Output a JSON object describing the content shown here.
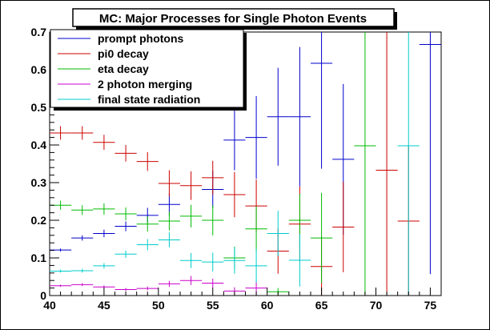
{
  "chart_data": {
    "type": "scatter",
    "title": "MC: Major Processes for Single Photon Events",
    "xlabel": "",
    "ylabel": "",
    "xlim": [
      40,
      76
    ],
    "ylim": [
      0,
      0.7
    ],
    "x_ticks": [
      40,
      45,
      50,
      55,
      60,
      65,
      70,
      75
    ],
    "x_tick_labels": [
      "40",
      "45",
      "50",
      "55",
      "60",
      "65",
      "70",
      "75"
    ],
    "y_ticks": [
      0,
      0.1,
      0.2,
      0.3,
      0.4,
      0.5,
      0.6,
      0.7
    ],
    "y_tick_labels": [
      "0",
      "0.1",
      "0.2",
      "0.3",
      "0.4",
      "0.5",
      "0.6",
      "0.7"
    ],
    "grid": false,
    "legend": "top-left",
    "x_bin_half_width": 1,
    "series": [
      {
        "name": "prompt photons",
        "color": "#0000cc",
        "points": [
          {
            "x": 41,
            "y": 0.121,
            "err": 0.004
          },
          {
            "x": 43,
            "y": 0.153,
            "err": 0.007
          },
          {
            "x": 45,
            "y": 0.165,
            "err": 0.01
          },
          {
            "x": 47,
            "y": 0.184,
            "err": 0.013
          },
          {
            "x": 49,
            "y": 0.213,
            "err": 0.02
          },
          {
            "x": 51,
            "y": 0.242,
            "err": 0.03
          },
          {
            "x": 55,
            "y": 0.282,
            "err": 0.05
          },
          {
            "x": 57,
            "y": 0.413,
            "err": 0.08
          },
          {
            "x": 59,
            "y": 0.42,
            "err": 0.11
          },
          {
            "x": 61,
            "y": 0.475,
            "err": 0.13
          },
          {
            "x": 63,
            "y": 0.475,
            "err": 0.185
          },
          {
            "x": 65,
            "y": 0.617,
            "err": 0.28
          },
          {
            "x": 67,
            "y": 0.362,
            "err": 0.2
          },
          {
            "x": 75,
            "y": 0.667,
            "err": 0.61
          }
        ]
      },
      {
        "name": "pi0 decay",
        "color": "#cc0000",
        "points": [
          {
            "x": 41,
            "y": 0.432,
            "err": 0.018
          },
          {
            "x": 43,
            "y": 0.432,
            "err": 0.018
          },
          {
            "x": 45,
            "y": 0.407,
            "err": 0.02
          },
          {
            "x": 47,
            "y": 0.378,
            "err": 0.022
          },
          {
            "x": 49,
            "y": 0.356,
            "err": 0.025
          },
          {
            "x": 51,
            "y": 0.298,
            "err": 0.035
          },
          {
            "x": 53,
            "y": 0.292,
            "err": 0.038
          },
          {
            "x": 55,
            "y": 0.313,
            "err": 0.045
          },
          {
            "x": 57,
            "y": 0.268,
            "err": 0.06
          },
          {
            "x": 59,
            "y": 0.238,
            "err": 0.07
          },
          {
            "x": 61,
            "y": 0.118,
            "err": 0.06
          },
          {
            "x": 63,
            "y": 0.19,
            "err": 0.1
          },
          {
            "x": 65,
            "y": 0.077,
            "err": 0.08
          },
          {
            "x": 67,
            "y": 0.182,
            "err": 0.12
          },
          {
            "x": 71,
            "y": 0.333,
            "err": 0.4
          },
          {
            "x": 73,
            "y": 0.198,
            "err": 0.2
          }
        ]
      },
      {
        "name": "eta decay",
        "color": "#00bb00",
        "points": [
          {
            "x": 41,
            "y": 0.24,
            "err": 0.012
          },
          {
            "x": 43,
            "y": 0.227,
            "err": 0.013
          },
          {
            "x": 45,
            "y": 0.23,
            "err": 0.015
          },
          {
            "x": 47,
            "y": 0.217,
            "err": 0.017
          },
          {
            "x": 49,
            "y": 0.19,
            "err": 0.02
          },
          {
            "x": 51,
            "y": 0.198,
            "err": 0.025
          },
          {
            "x": 53,
            "y": 0.211,
            "err": 0.03
          },
          {
            "x": 55,
            "y": 0.2,
            "err": 0.04
          },
          {
            "x": 57,
            "y": 0.1,
            "err": 0.03
          },
          {
            "x": 59,
            "y": 0.177,
            "err": 0.06
          },
          {
            "x": 61,
            "y": 0.01,
            "err": 0.01
          },
          {
            "x": 63,
            "y": 0.2,
            "err": 0.07
          },
          {
            "x": 65,
            "y": 0.153,
            "err": 0.12
          },
          {
            "x": 69,
            "y": 0.398,
            "err": 0.4
          }
        ]
      },
      {
        "name": "2 photon merging",
        "color": "#cc00cc",
        "points": [
          {
            "x": 41,
            "y": 0.026,
            "err": 0.003
          },
          {
            "x": 43,
            "y": 0.029,
            "err": 0.004
          },
          {
            "x": 45,
            "y": 0.023,
            "err": 0.004
          },
          {
            "x": 47,
            "y": 0.016,
            "err": 0.004
          },
          {
            "x": 49,
            "y": 0.019,
            "err": 0.005
          },
          {
            "x": 51,
            "y": 0.031,
            "err": 0.008
          },
          {
            "x": 53,
            "y": 0.04,
            "err": 0.012
          },
          {
            "x": 55,
            "y": 0.033,
            "err": 0.012
          },
          {
            "x": 57,
            "y": 0.012,
            "err": 0.01
          },
          {
            "x": 59,
            "y": 0.02,
            "err": 0.02
          }
        ]
      },
      {
        "name": "final state radiation",
        "color": "#00cccc",
        "points": [
          {
            "x": 41,
            "y": 0.065,
            "err": 0.004
          },
          {
            "x": 43,
            "y": 0.066,
            "err": 0.005
          },
          {
            "x": 45,
            "y": 0.079,
            "err": 0.007
          },
          {
            "x": 47,
            "y": 0.11,
            "err": 0.01
          },
          {
            "x": 49,
            "y": 0.135,
            "err": 0.015
          },
          {
            "x": 51,
            "y": 0.148,
            "err": 0.02
          },
          {
            "x": 53,
            "y": 0.093,
            "err": 0.02
          },
          {
            "x": 55,
            "y": 0.089,
            "err": 0.025
          },
          {
            "x": 57,
            "y": 0.093,
            "err": 0.035
          },
          {
            "x": 59,
            "y": 0.079,
            "err": 0.045
          },
          {
            "x": 61,
            "y": 0.165,
            "err": 0.06
          },
          {
            "x": 63,
            "y": 0.094,
            "err": 0.07
          },
          {
            "x": 73,
            "y": 0.398,
            "err": 0.4
          }
        ]
      }
    ]
  }
}
